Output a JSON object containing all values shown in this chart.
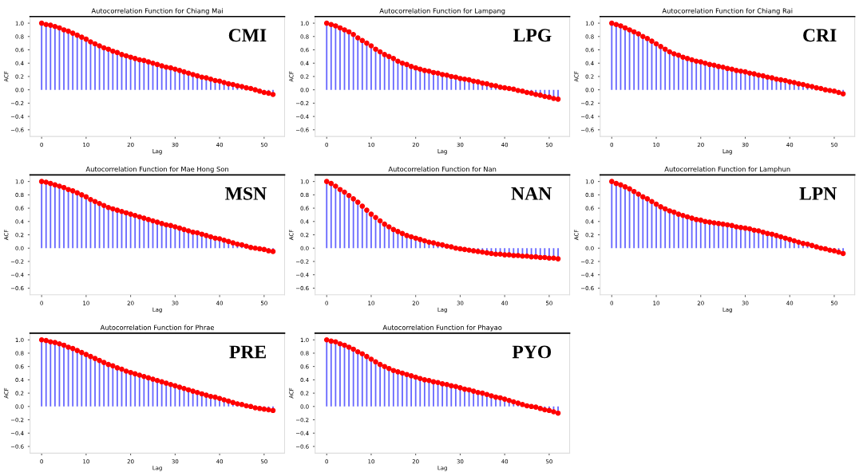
{
  "chart_data": [
    {
      "type": "lollipop",
      "title": "Autocorrelation Function for Chiang Mai",
      "xlabel": "Lag",
      "ylabel": "ACF",
      "annotations": [
        "CMI"
      ],
      "xlim": [
        -2.6,
        54.6
      ],
      "ylim": [
        -0.7,
        1.1
      ],
      "xticks": [
        0,
        10,
        20,
        30,
        40,
        50
      ],
      "yticks": [
        {
          "value": -0.6,
          "label": "−0.6"
        },
        {
          "value": -0.4,
          "label": "−0.4"
        },
        {
          "value": -0.2,
          "label": "−0.2"
        },
        {
          "value": 0,
          "label": "0.0"
        },
        0.2,
        0.4,
        0.6,
        0.8,
        {
          "value": 1,
          "label": "1.0"
        }
      ],
      "marker": "circle",
      "x": [
        0,
        1,
        2,
        3,
        4,
        5,
        6,
        7,
        8,
        9,
        10,
        11,
        12,
        13,
        14,
        15,
        16,
        17,
        18,
        19,
        20,
        21,
        22,
        23,
        24,
        25,
        26,
        27,
        28,
        29,
        30,
        31,
        32,
        33,
        34,
        35,
        36,
        37,
        38,
        39,
        40,
        41,
        42,
        43,
        44,
        45,
        46,
        47,
        48,
        49,
        50,
        51,
        52
      ],
      "series": [
        {
          "color": "#ff0000",
          "values": [
            1.0,
            0.98,
            0.97,
            0.95,
            0.93,
            0.9,
            0.88,
            0.85,
            0.82,
            0.79,
            0.76,
            0.72,
            0.69,
            0.66,
            0.63,
            0.61,
            0.58,
            0.56,
            0.53,
            0.51,
            0.49,
            0.47,
            0.45,
            0.44,
            0.42,
            0.4,
            0.38,
            0.36,
            0.34,
            0.33,
            0.31,
            0.29,
            0.27,
            0.25,
            0.23,
            0.21,
            0.19,
            0.18,
            0.16,
            0.14,
            0.13,
            0.11,
            0.09,
            0.08,
            0.06,
            0.05,
            0.03,
            0.02,
            0.0,
            -0.02,
            -0.04,
            -0.05,
            -0.07
          ]
        }
      ]
    },
    {
      "type": "lollipop",
      "title": "Autocorrelation Function for Lampang",
      "xlabel": "Lag",
      "ylabel": "ACF",
      "annotations": [
        "LPG"
      ],
      "xlim": [
        -2.6,
        54.6
      ],
      "ylim": [
        -0.7,
        1.1
      ],
      "xticks": [
        0,
        10,
        20,
        30,
        40,
        50
      ],
      "yticks": [
        {
          "value": -0.6,
          "label": "−0.6"
        },
        {
          "value": -0.4,
          "label": "−0.4"
        },
        {
          "value": -0.2,
          "label": "−0.2"
        },
        {
          "value": 0,
          "label": "0.0"
        },
        0.2,
        0.4,
        0.6,
        0.8,
        {
          "value": 1,
          "label": "1.0"
        }
      ],
      "marker": "circle",
      "x": [
        0,
        1,
        2,
        3,
        4,
        5,
        6,
        7,
        8,
        9,
        10,
        11,
        12,
        13,
        14,
        15,
        16,
        17,
        18,
        19,
        20,
        21,
        22,
        23,
        24,
        25,
        26,
        27,
        28,
        29,
        30,
        31,
        32,
        33,
        34,
        35,
        36,
        37,
        38,
        39,
        40,
        41,
        42,
        43,
        44,
        45,
        46,
        47,
        48,
        49,
        50,
        51,
        52
      ],
      "series": [
        {
          "color": "#ff0000",
          "values": [
            1.0,
            0.98,
            0.96,
            0.93,
            0.9,
            0.87,
            0.83,
            0.78,
            0.74,
            0.7,
            0.66,
            0.61,
            0.57,
            0.53,
            0.5,
            0.47,
            0.43,
            0.4,
            0.38,
            0.35,
            0.33,
            0.31,
            0.29,
            0.28,
            0.26,
            0.25,
            0.23,
            0.22,
            0.2,
            0.19,
            0.17,
            0.16,
            0.15,
            0.13,
            0.12,
            0.1,
            0.09,
            0.07,
            0.06,
            0.04,
            0.03,
            0.02,
            0.01,
            -0.01,
            -0.02,
            -0.04,
            -0.05,
            -0.07,
            -0.08,
            -0.1,
            -0.11,
            -0.13,
            -0.14
          ]
        }
      ]
    },
    {
      "type": "lollipop",
      "title": "Autocorrelation Function for Chiang Rai",
      "xlabel": "Lag",
      "ylabel": "ACF",
      "annotations": [
        "CRI"
      ],
      "xlim": [
        -2.6,
        54.6
      ],
      "ylim": [
        -0.7,
        1.1
      ],
      "xticks": [
        0,
        10,
        20,
        30,
        40,
        50
      ],
      "yticks": [
        {
          "value": -0.6,
          "label": "−0.6"
        },
        {
          "value": -0.4,
          "label": "−0.4"
        },
        {
          "value": -0.2,
          "label": "−0.2"
        },
        {
          "value": 0,
          "label": "0.0"
        },
        0.2,
        0.4,
        0.6,
        0.8,
        {
          "value": 1,
          "label": "1.0"
        }
      ],
      "marker": "circle",
      "x": [
        0,
        1,
        2,
        3,
        4,
        5,
        6,
        7,
        8,
        9,
        10,
        11,
        12,
        13,
        14,
        15,
        16,
        17,
        18,
        19,
        20,
        21,
        22,
        23,
        24,
        25,
        26,
        27,
        28,
        29,
        30,
        31,
        32,
        33,
        34,
        35,
        36,
        37,
        38,
        39,
        40,
        41,
        42,
        43,
        44,
        45,
        46,
        47,
        48,
        49,
        50,
        51,
        52
      ],
      "series": [
        {
          "color": "#ff0000",
          "values": [
            1.0,
            0.98,
            0.96,
            0.93,
            0.9,
            0.87,
            0.84,
            0.8,
            0.77,
            0.73,
            0.69,
            0.65,
            0.61,
            0.57,
            0.54,
            0.52,
            0.49,
            0.47,
            0.45,
            0.43,
            0.42,
            0.4,
            0.38,
            0.37,
            0.35,
            0.34,
            0.32,
            0.31,
            0.29,
            0.28,
            0.27,
            0.25,
            0.24,
            0.22,
            0.21,
            0.19,
            0.18,
            0.16,
            0.15,
            0.14,
            0.12,
            0.11,
            0.09,
            0.08,
            0.06,
            0.05,
            0.03,
            0.02,
            0.0,
            -0.01,
            -0.02,
            -0.04,
            -0.06
          ]
        }
      ]
    },
    {
      "type": "lollipop",
      "title": "Autocorrelation Function for Mae Hong Son",
      "xlabel": "Lag",
      "ylabel": "ACF",
      "annotations": [
        "MSN"
      ],
      "xlim": [
        -2.6,
        54.6
      ],
      "ylim": [
        -0.7,
        1.1
      ],
      "xticks": [
        0,
        10,
        20,
        30,
        40,
        50
      ],
      "yticks": [
        {
          "value": -0.6,
          "label": "−0.6"
        },
        {
          "value": -0.4,
          "label": "−0.4"
        },
        {
          "value": -0.2,
          "label": "−0.2"
        },
        {
          "value": 0,
          "label": "0.0"
        },
        0.2,
        0.4,
        0.6,
        0.8,
        {
          "value": 1,
          "label": "1.0"
        }
      ],
      "marker": "circle",
      "x": [
        0,
        1,
        2,
        3,
        4,
        5,
        6,
        7,
        8,
        9,
        10,
        11,
        12,
        13,
        14,
        15,
        16,
        17,
        18,
        19,
        20,
        21,
        22,
        23,
        24,
        25,
        26,
        27,
        28,
        29,
        30,
        31,
        32,
        33,
        34,
        35,
        36,
        37,
        38,
        39,
        40,
        41,
        42,
        43,
        44,
        45,
        46,
        47,
        48,
        49,
        50,
        51,
        52
      ],
      "series": [
        {
          "color": "#ff0000",
          "values": [
            1.0,
            0.99,
            0.97,
            0.95,
            0.93,
            0.91,
            0.88,
            0.86,
            0.83,
            0.8,
            0.77,
            0.73,
            0.7,
            0.67,
            0.64,
            0.61,
            0.59,
            0.57,
            0.55,
            0.53,
            0.51,
            0.49,
            0.47,
            0.45,
            0.43,
            0.41,
            0.39,
            0.37,
            0.35,
            0.34,
            0.32,
            0.3,
            0.28,
            0.26,
            0.24,
            0.23,
            0.21,
            0.19,
            0.17,
            0.15,
            0.14,
            0.12,
            0.1,
            0.08,
            0.06,
            0.05,
            0.03,
            0.01,
            0.0,
            -0.01,
            -0.02,
            -0.04,
            -0.05
          ]
        }
      ]
    },
    {
      "type": "lollipop",
      "title": "Autocorrelation Function for Nan",
      "xlabel": "Lag",
      "ylabel": "ACF",
      "annotations": [
        "NAN"
      ],
      "xlim": [
        -2.6,
        54.6
      ],
      "ylim": [
        -0.7,
        1.1
      ],
      "xticks": [
        0,
        10,
        20,
        30,
        40,
        50
      ],
      "yticks": [
        {
          "value": -0.6,
          "label": "−0.6"
        },
        {
          "value": -0.4,
          "label": "−0.4"
        },
        {
          "value": -0.2,
          "label": "−0.2"
        },
        {
          "value": 0,
          "label": "0.0"
        },
        0.2,
        0.4,
        0.6,
        0.8,
        {
          "value": 1,
          "label": "1.0"
        }
      ],
      "marker": "circle",
      "x": [
        0,
        1,
        2,
        3,
        4,
        5,
        6,
        7,
        8,
        9,
        10,
        11,
        12,
        13,
        14,
        15,
        16,
        17,
        18,
        19,
        20,
        21,
        22,
        23,
        24,
        25,
        26,
        27,
        28,
        29,
        30,
        31,
        32,
        33,
        34,
        35,
        36,
        37,
        38,
        39,
        40,
        41,
        42,
        43,
        44,
        45,
        46,
        47,
        48,
        49,
        50,
        51,
        52
      ],
      "series": [
        {
          "color": "#ff0000",
          "values": [
            1.0,
            0.97,
            0.93,
            0.88,
            0.84,
            0.79,
            0.74,
            0.69,
            0.63,
            0.57,
            0.51,
            0.46,
            0.41,
            0.36,
            0.32,
            0.28,
            0.25,
            0.22,
            0.19,
            0.17,
            0.15,
            0.13,
            0.11,
            0.09,
            0.08,
            0.06,
            0.05,
            0.03,
            0.02,
            0.0,
            -0.01,
            -0.02,
            -0.03,
            -0.04,
            -0.05,
            -0.06,
            -0.07,
            -0.08,
            -0.09,
            -0.09,
            -0.1,
            -0.1,
            -0.11,
            -0.11,
            -0.12,
            -0.12,
            -0.13,
            -0.13,
            -0.14,
            -0.14,
            -0.15,
            -0.15,
            -0.16
          ]
        }
      ]
    },
    {
      "type": "lollipop",
      "title": "Autocorrelation Function for Lamphun",
      "xlabel": "Lag",
      "ylabel": "ACF",
      "annotations": [
        "LPN"
      ],
      "xlim": [
        -2.6,
        54.6
      ],
      "ylim": [
        -0.7,
        1.1
      ],
      "xticks": [
        0,
        10,
        20,
        30,
        40,
        50
      ],
      "yticks": [
        {
          "value": -0.6,
          "label": "−0.6"
        },
        {
          "value": -0.4,
          "label": "−0.4"
        },
        {
          "value": -0.2,
          "label": "−0.2"
        },
        {
          "value": 0,
          "label": "0.0"
        },
        0.2,
        0.4,
        0.6,
        0.8,
        {
          "value": 1,
          "label": "1.0"
        }
      ],
      "marker": "circle",
      "x": [
        0,
        1,
        2,
        3,
        4,
        5,
        6,
        7,
        8,
        9,
        10,
        11,
        12,
        13,
        14,
        15,
        16,
        17,
        18,
        19,
        20,
        21,
        22,
        23,
        24,
        25,
        26,
        27,
        28,
        29,
        30,
        31,
        32,
        33,
        34,
        35,
        36,
        37,
        38,
        39,
        40,
        41,
        42,
        43,
        44,
        45,
        46,
        47,
        48,
        49,
        50,
        51,
        52
      ],
      "series": [
        {
          "color": "#ff0000",
          "values": [
            1.0,
            0.97,
            0.95,
            0.92,
            0.89,
            0.85,
            0.81,
            0.77,
            0.74,
            0.7,
            0.66,
            0.62,
            0.59,
            0.56,
            0.54,
            0.51,
            0.49,
            0.47,
            0.45,
            0.43,
            0.42,
            0.4,
            0.39,
            0.38,
            0.37,
            0.36,
            0.35,
            0.34,
            0.32,
            0.31,
            0.3,
            0.29,
            0.27,
            0.26,
            0.24,
            0.22,
            0.21,
            0.19,
            0.17,
            0.15,
            0.13,
            0.11,
            0.09,
            0.07,
            0.06,
            0.04,
            0.02,
            0.0,
            -0.01,
            -0.03,
            -0.04,
            -0.06,
            -0.08
          ]
        }
      ]
    },
    {
      "type": "lollipop",
      "title": "Autocorrelation Function for Phrae",
      "xlabel": "Lag",
      "ylabel": "ACF",
      "annotations": [
        "PRE"
      ],
      "xlim": [
        -2.6,
        54.6
      ],
      "ylim": [
        -0.7,
        1.1
      ],
      "xticks": [
        0,
        10,
        20,
        30,
        40,
        50
      ],
      "yticks": [
        {
          "value": -0.6,
          "label": "−0.6"
        },
        {
          "value": -0.4,
          "label": "−0.4"
        },
        {
          "value": -0.2,
          "label": "−0.2"
        },
        {
          "value": 0,
          "label": "0.0"
        },
        0.2,
        0.4,
        0.6,
        0.8,
        {
          "value": 1,
          "label": "1.0"
        }
      ],
      "marker": "circle",
      "x": [
        0,
        1,
        2,
        3,
        4,
        5,
        6,
        7,
        8,
        9,
        10,
        11,
        12,
        13,
        14,
        15,
        16,
        17,
        18,
        19,
        20,
        21,
        22,
        23,
        24,
        25,
        26,
        27,
        28,
        29,
        30,
        31,
        32,
        33,
        34,
        35,
        36,
        37,
        38,
        39,
        40,
        41,
        42,
        43,
        44,
        45,
        46,
        47,
        48,
        49,
        50,
        51,
        52
      ],
      "series": [
        {
          "color": "#ff0000",
          "values": [
            1.0,
            0.99,
            0.97,
            0.96,
            0.94,
            0.92,
            0.89,
            0.87,
            0.84,
            0.81,
            0.78,
            0.75,
            0.72,
            0.69,
            0.66,
            0.63,
            0.61,
            0.58,
            0.56,
            0.53,
            0.51,
            0.49,
            0.47,
            0.45,
            0.43,
            0.41,
            0.39,
            0.37,
            0.35,
            0.33,
            0.31,
            0.29,
            0.27,
            0.25,
            0.23,
            0.21,
            0.19,
            0.17,
            0.15,
            0.14,
            0.12,
            0.1,
            0.08,
            0.06,
            0.04,
            0.03,
            0.01,
            0.0,
            -0.02,
            -0.03,
            -0.04,
            -0.05,
            -0.06
          ]
        }
      ]
    },
    {
      "type": "lollipop",
      "title": "Autocorrelation Function for Phayao",
      "xlabel": "Lag",
      "ylabel": "ACF",
      "annotations": [
        "PYO"
      ],
      "xlim": [
        -2.6,
        54.6
      ],
      "ylim": [
        -0.7,
        1.1
      ],
      "xticks": [
        0,
        10,
        20,
        30,
        40,
        50
      ],
      "yticks": [
        {
          "value": -0.6,
          "label": "−0.6"
        },
        {
          "value": -0.4,
          "label": "−0.4"
        },
        {
          "value": -0.2,
          "label": "−0.2"
        },
        {
          "value": 0,
          "label": "0.0"
        },
        0.2,
        0.4,
        0.6,
        0.8,
        {
          "value": 1,
          "label": "1.0"
        }
      ],
      "marker": "circle",
      "x": [
        0,
        1,
        2,
        3,
        4,
        5,
        6,
        7,
        8,
        9,
        10,
        11,
        12,
        13,
        14,
        15,
        16,
        17,
        18,
        19,
        20,
        21,
        22,
        23,
        24,
        25,
        26,
        27,
        28,
        29,
        30,
        31,
        32,
        33,
        34,
        35,
        36,
        37,
        38,
        39,
        40,
        41,
        42,
        43,
        44,
        45,
        46,
        47,
        48,
        49,
        50,
        51,
        52
      ],
      "series": [
        {
          "color": "#ff0000",
          "values": [
            1.0,
            0.98,
            0.97,
            0.94,
            0.92,
            0.89,
            0.86,
            0.82,
            0.79,
            0.75,
            0.71,
            0.67,
            0.63,
            0.6,
            0.57,
            0.54,
            0.52,
            0.5,
            0.48,
            0.46,
            0.44,
            0.42,
            0.4,
            0.39,
            0.37,
            0.36,
            0.34,
            0.33,
            0.31,
            0.3,
            0.28,
            0.26,
            0.25,
            0.23,
            0.21,
            0.2,
            0.18,
            0.16,
            0.14,
            0.13,
            0.11,
            0.09,
            0.07,
            0.05,
            0.03,
            0.01,
            0.0,
            -0.01,
            -0.03,
            -0.05,
            -0.06,
            -0.08,
            -0.1
          ]
        }
      ]
    }
  ]
}
